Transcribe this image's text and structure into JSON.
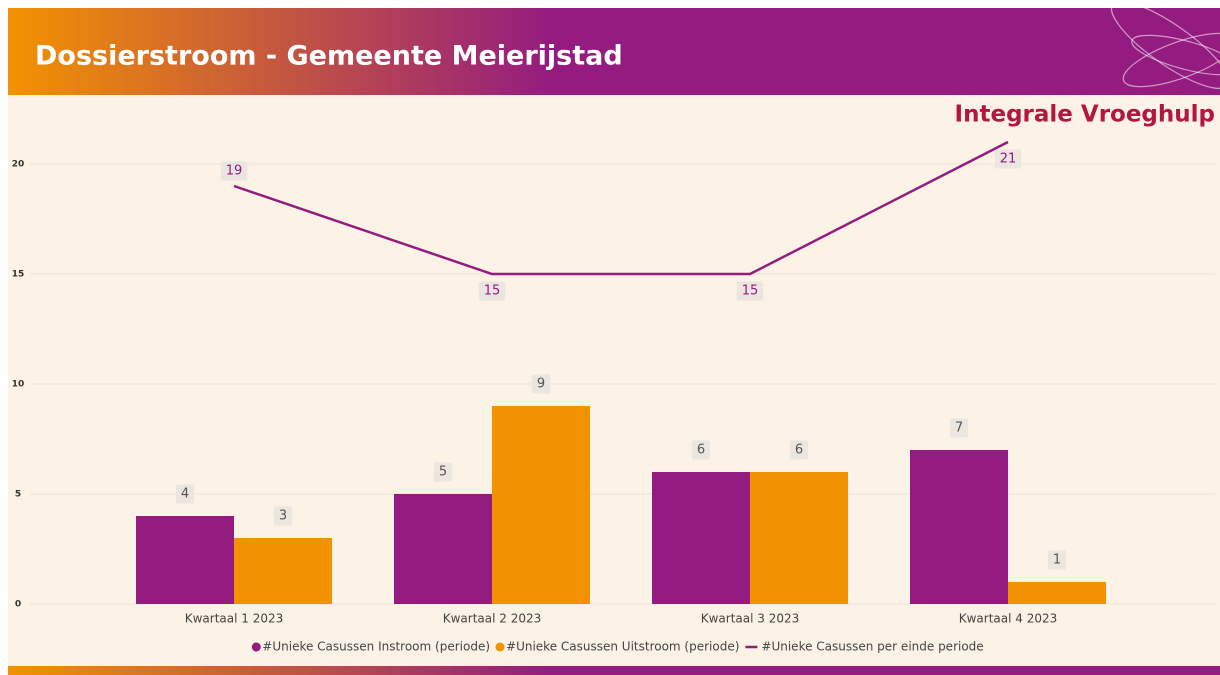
{
  "chart_data": {
    "type": "bar",
    "title": "Dossierstroom - Gemeente Meierijstad",
    "subtitle": "Integrale Vroeghulp",
    "categories": [
      "Kwartaal 1 2023",
      "Kwartaal 2 2023",
      "Kwartaal 3 2023",
      "Kwartaal 4 2023"
    ],
    "series": [
      {
        "name": "#Unieke Casussen Instroom (periode)",
        "color": "#941b80",
        "type": "bar",
        "values": [
          4,
          5,
          6,
          7
        ]
      },
      {
        "name": "#Unieke Casussen Uitstroom (periode)",
        "color": "#f39200",
        "type": "bar",
        "values": [
          3,
          9,
          6,
          1
        ]
      },
      {
        "name": "#Unieke Casussen per einde periode",
        "color": "#941b80",
        "type": "line",
        "values": [
          19,
          15,
          15,
          21
        ]
      }
    ],
    "ylim": [
      0,
      22
    ],
    "yticks": [
      0,
      5,
      10,
      15,
      20
    ],
    "grid": true,
    "legend": "bottom"
  }
}
